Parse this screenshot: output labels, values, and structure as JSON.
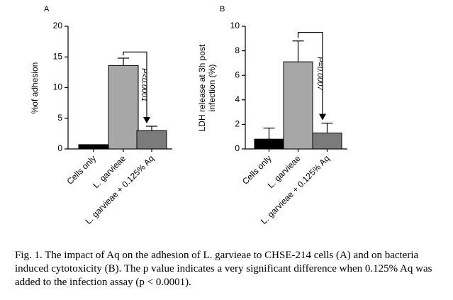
{
  "chart_data": [
    {
      "type": "bar",
      "panel_label": "A",
      "categories": [
        "Cells only",
        "L. garvieae",
        "L. garvieae + 0.125% Aq"
      ],
      "values": [
        0.7,
        13.6,
        3.0
      ],
      "errors": [
        0,
        1.2,
        0.7
      ],
      "colors": [
        "#000000",
        "#a7a7a7",
        "#7b7b7b"
      ],
      "ylabel": "%of adhesion",
      "xlabel": "",
      "ylim": [
        0,
        20
      ],
      "yticks": [
        0,
        5,
        10,
        15,
        20
      ],
      "grid": false,
      "annotation": {
        "text": "P<0.0001",
        "from_index": 1,
        "to_index": 2,
        "bracket_level": 15.8
      }
    },
    {
      "type": "bar",
      "panel_label": "B",
      "categories": [
        "Cells only",
        "L. garvieae",
        "L. garvieae + 0.125% Aq"
      ],
      "values": [
        0.8,
        7.1,
        1.3
      ],
      "errors": [
        0.9,
        1.7,
        0.8
      ],
      "colors": [
        "#000000",
        "#a7a7a7",
        "#7b7b7b"
      ],
      "ylabel": "LDH release at 3h post infection (%)",
      "ylabel_lines": [
        "LDH release at 3h post",
        "infection (%)"
      ],
      "xlabel": "",
      "ylim": [
        0,
        10
      ],
      "yticks": [
        0,
        2,
        4,
        6,
        8,
        10
      ],
      "grid": false,
      "annotation": {
        "text": "P=0.0007",
        "from_index": 1,
        "to_index": 2,
        "bracket_level": 9.5
      }
    }
  ],
  "caption": "Fig. 1. The impact of Aq on the adhesion of L. garvieae to CHSE-214 cells (A) and on bacteria induced cytotoxicity (B). The p value indicates a very significant difference when 0.125% Aq was added to the infection assay (p < 0.0001)."
}
